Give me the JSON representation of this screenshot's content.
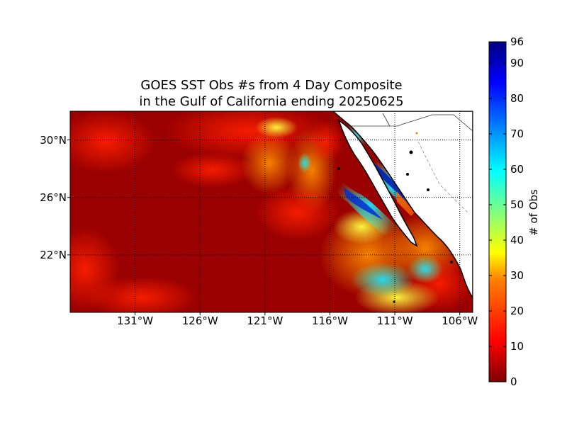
{
  "title": {
    "line1": "GOES SST Obs #s from 4 Day Composite",
    "line2": "in the Gulf of California ending 20250625"
  },
  "map": {
    "projection": "cylindrical",
    "lon_range": [
      -136,
      -105
    ],
    "lat_range": [
      18,
      32
    ],
    "grid": "dotted",
    "lat_ticks": [
      {
        "value": 22,
        "label": "22°N"
      },
      {
        "value": 26,
        "label": "26°N"
      },
      {
        "value": 30,
        "label": "30°N"
      }
    ],
    "lon_ticks": [
      {
        "value": -131,
        "label": "131°W"
      },
      {
        "value": -126,
        "label": "126°W"
      },
      {
        "value": -121,
        "label": "121°W"
      },
      {
        "value": -116,
        "label": "116°W"
      },
      {
        "value": -111,
        "label": "111°W"
      },
      {
        "value": -106,
        "label": "106°W"
      }
    ],
    "background_color": "#8b0000",
    "land_color": "#ffffff",
    "coast_color": "#000000"
  },
  "colorbar": {
    "label": "# of Obs",
    "min": 0,
    "max": 96,
    "ticks": [
      {
        "value": 0,
        "label": "0"
      },
      {
        "value": 10,
        "label": "10"
      },
      {
        "value": 20,
        "label": "20"
      },
      {
        "value": 30,
        "label": "30"
      },
      {
        "value": 40,
        "label": "40"
      },
      {
        "value": 50,
        "label": "50"
      },
      {
        "value": 60,
        "label": "60"
      },
      {
        "value": 70,
        "label": "70"
      },
      {
        "value": 80,
        "label": "80"
      },
      {
        "value": 90,
        "label": "90"
      },
      {
        "value": 96,
        "label": "96"
      }
    ],
    "colormap": [
      "#7f0000",
      "#ff0000",
      "#ff8000",
      "#ffff00",
      "#80ff80",
      "#00ffff",
      "#0080ff",
      "#0000ff",
      "#00007f"
    ]
  }
}
